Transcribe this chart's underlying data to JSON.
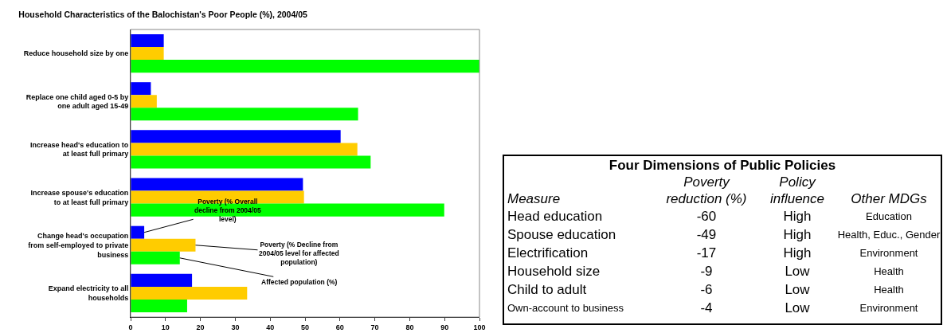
{
  "chart_data": [
    {
      "type": "bar",
      "orientation": "horizontal",
      "title": "Household Characteristics of the Balochistan's Poor People (%), 2004/05",
      "categories": [
        "Reduce household size by one",
        "Replace one child aged 0-5 by\none adult aged 15-49",
        "Increase head's education to\nat least full primary",
        "Increase spouse's education\nto at least full primary",
        "Change head's occupation\nfrom self-employed to private\nbusiness",
        "Expand electricity to all\nhouseholds"
      ],
      "series": [
        {
          "name": "Poverty (% Overall\ndecline from 2004/05\nlevel)",
          "color": "#0000ff",
          "values": [
            9.5,
            5.8,
            60.2,
            49.4,
            3.9,
            17.6
          ]
        },
        {
          "name": "Poverty (% Decline from\n2004/05 level for affected\npopulation)",
          "color": "#ffcc00",
          "values": [
            9.5,
            7.5,
            65,
            49.7,
            18.6,
            33.4
          ]
        },
        {
          "name": "Affected population (%)",
          "color": "#00ff00",
          "values": [
            100,
            65.2,
            68.8,
            89.9,
            14.1,
            16.2
          ]
        }
      ],
      "xlim": [
        0,
        100
      ],
      "xticks": [
        0,
        10,
        20,
        30,
        40,
        50,
        60,
        70,
        80,
        90,
        100
      ]
    },
    {
      "type": "other",
      "title": "Four Dimensions of Public Policies",
      "annotations": [
        "Measure",
        "Poverty\nreduction (%)",
        "Policy\ninfluence",
        "Other MDGs",
        "Head education",
        "-60",
        "High",
        "Education",
        "Spouse education",
        "-49",
        "High",
        "Health, Educ., Gender",
        "Electrification",
        "-17",
        "High",
        "Environment",
        "Household size",
        "-9",
        "Low",
        "Health",
        "Child to adult",
        "-6",
        "Low",
        "Health",
        "Own-account to business",
        "-4",
        "Low",
        "Environment"
      ]
    }
  ]
}
